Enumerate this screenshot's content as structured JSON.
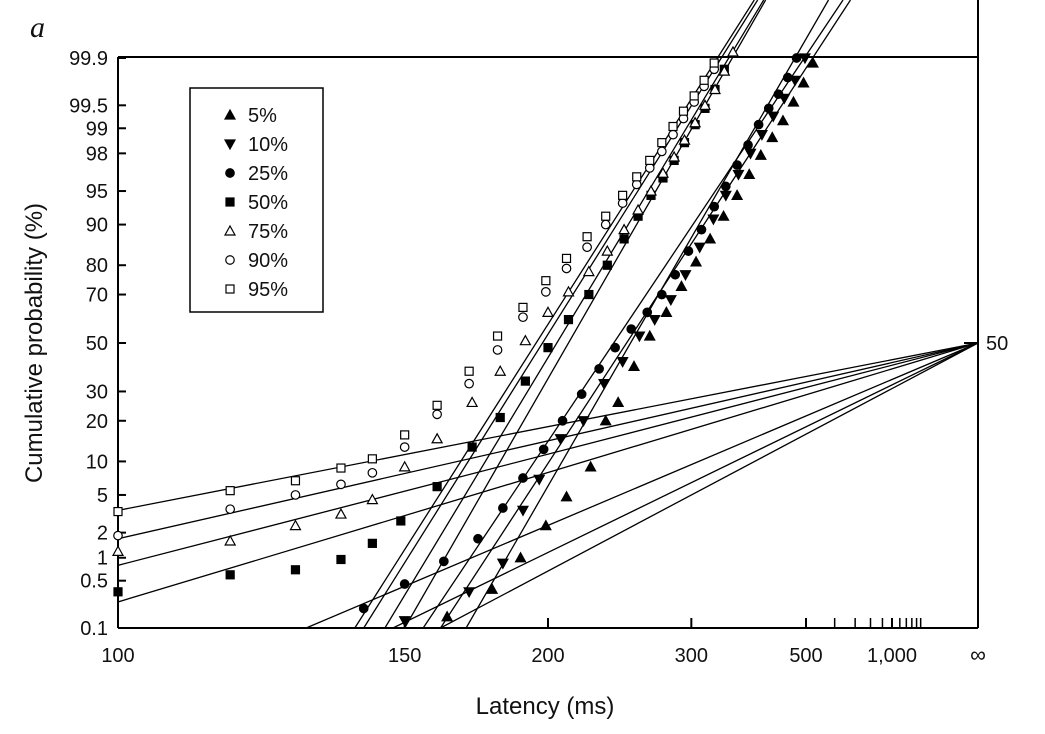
{
  "chart_data": {
    "type": "scatter",
    "panel_label": "a",
    "xlabel": "Latency (ms)",
    "ylabel": "Cumulative probability (%)",
    "x_scale": "reciprocal",
    "y_scale": "probit",
    "xlim": [
      100,
      "∞"
    ],
    "ylim": [
      0.1,
      99.9
    ],
    "grid": false,
    "legend_position": "top-left",
    "x_ticks": [
      {
        "value": 100,
        "label": "100"
      },
      {
        "value": 150,
        "label": "150"
      },
      {
        "value": 200,
        "label": "200"
      },
      {
        "value": 300,
        "label": "300"
      },
      {
        "value": 500,
        "label": "500"
      },
      {
        "value": 1000,
        "label": "1,000"
      },
      {
        "value": "inf",
        "label": "∞"
      }
    ],
    "x_minor_ticks": [
      600,
      700,
      800,
      900,
      1100,
      1200,
      1300,
      1400,
      1500
    ],
    "y_ticks": [
      {
        "value": 0.1,
        "label": "0.1"
      },
      {
        "value": 0.5,
        "label": "0.5"
      },
      {
        "value": 1,
        "label": "1"
      },
      {
        "value": 2,
        "label": "2"
      },
      {
        "value": 5,
        "label": "5"
      },
      {
        "value": 10,
        "label": "10"
      },
      {
        "value": 20,
        "label": "20"
      },
      {
        "value": 30,
        "label": "30"
      },
      {
        "value": 50,
        "label": "50"
      },
      {
        "value": 70,
        "label": "70"
      },
      {
        "value": 80,
        "label": "80"
      },
      {
        "value": 90,
        "label": "90"
      },
      {
        "value": 95,
        "label": "95"
      },
      {
        "value": 98,
        "label": "98"
      },
      {
        "value": 99,
        "label": "99"
      },
      {
        "value": 99.5,
        "label": "99.5"
      },
      {
        "value": 99.9,
        "label": "99.9"
      }
    ],
    "right_label": "50",
    "series": [
      {
        "name": "5%",
        "marker": "triangle-up-filled",
        "points": [
          [
            162,
            0.15
          ],
          [
            177,
            0.38
          ],
          [
            188,
            1.0
          ],
          [
            199,
            2.4
          ],
          [
            209,
            4.8
          ],
          [
            222,
            9
          ],
          [
            231,
            20
          ],
          [
            239,
            26
          ],
          [
            250,
            40
          ],
          [
            262,
            53
          ],
          [
            276,
            63
          ],
          [
            290,
            73
          ],
          [
            305,
            81
          ],
          [
            321,
            87
          ],
          [
            338,
            91.5
          ],
          [
            357,
            94.5
          ],
          [
            376,
            96.6
          ],
          [
            396,
            97.9
          ],
          [
            418,
            98.7
          ],
          [
            441,
            99.2
          ],
          [
            466,
            99.55
          ],
          [
            493,
            99.76
          ],
          [
            521,
            99.88
          ]
        ]
      },
      {
        "name": "10%",
        "marker": "triangle-down-filled",
        "points": [
          [
            150,
            0.13
          ],
          [
            169,
            0.35
          ],
          [
            181,
            0.85
          ],
          [
            189,
            3.5
          ],
          [
            196,
            7
          ],
          [
            206,
            15
          ],
          [
            218,
            20
          ],
          [
            230,
            33
          ],
          [
            242,
            42
          ],
          [
            254,
            53
          ],
          [
            266,
            60
          ],
          [
            280,
            68
          ],
          [
            294,
            77
          ],
          [
            309,
            85
          ],
          [
            325,
            91
          ],
          [
            341,
            94.5
          ],
          [
            359,
            96.6
          ],
          [
            378,
            98
          ],
          [
            398,
            98.8
          ],
          [
            420,
            99.3
          ],
          [
            444,
            99.6
          ],
          [
            470,
            99.78
          ],
          [
            497,
            99.9
          ]
        ]
      },
      {
        "name": "25%",
        "marker": "circle-filled",
        "points": [
          [
            140,
            0.2
          ],
          [
            150,
            0.45
          ],
          [
            161,
            0.9
          ],
          [
            172,
            1.7
          ],
          [
            181,
            3.7
          ],
          [
            189,
            7.2
          ],
          [
            198,
            12.5
          ],
          [
            207,
            20
          ],
          [
            217,
            29
          ],
          [
            227,
            39
          ],
          [
            237,
            48
          ],
          [
            248,
            56
          ],
          [
            260,
            63
          ],
          [
            272,
            70
          ],
          [
            284,
            77
          ],
          [
            297,
            84
          ],
          [
            311,
            89
          ],
          [
            326,
            93
          ],
          [
            341,
            95.5
          ],
          [
            357,
            97.3
          ],
          [
            374,
            98.4
          ],
          [
            392,
            99.1
          ],
          [
            411,
            99.45
          ],
          [
            431,
            99.65
          ],
          [
            452,
            99.8
          ],
          [
            474,
            99.9
          ]
        ]
      },
      {
        "name": "50%",
        "marker": "square-filled",
        "points": [
          [
            100,
            0.35
          ],
          [
            115,
            0.6
          ],
          [
            126,
            0.7
          ],
          [
            135,
            0.95
          ],
          [
            142,
            1.5
          ],
          [
            149,
            2.7
          ],
          [
            159,
            6
          ],
          [
            170,
            13
          ],
          [
            180,
            21
          ],
          [
            190,
            34
          ],
          [
            200,
            48
          ],
          [
            210,
            60
          ],
          [
            221,
            70
          ],
          [
            232,
            80
          ],
          [
            243,
            87
          ],
          [
            253,
            91.5
          ],
          [
            263,
            94.5
          ],
          [
            273,
            96.3
          ],
          [
            283,
            97.6
          ],
          [
            293,
            98.5
          ],
          [
            304,
            99.1
          ],
          [
            315,
            99.45
          ],
          [
            327,
            99.7
          ],
          [
            339,
            99.85
          ]
        ]
      },
      {
        "name": "75%",
        "marker": "triangle-up-open",
        "points": [
          [
            100,
            1.2
          ],
          [
            115,
            1.6
          ],
          [
            126,
            2.4
          ],
          [
            135,
            3.2
          ],
          [
            142,
            4.5
          ],
          [
            150,
            9
          ],
          [
            159,
            15
          ],
          [
            170,
            26
          ],
          [
            180,
            38
          ],
          [
            190,
            51
          ],
          [
            200,
            63
          ],
          [
            210,
            71
          ],
          [
            221,
            78
          ],
          [
            232,
            84
          ],
          [
            243,
            89
          ],
          [
            253,
            92.5
          ],
          [
            263,
            95
          ],
          [
            273,
            96.7
          ],
          [
            283,
            97.8
          ],
          [
            293,
            98.6
          ],
          [
            304,
            99.15
          ],
          [
            315,
            99.5
          ],
          [
            327,
            99.7
          ],
          [
            339,
            99.84
          ],
          [
            351,
            99.92
          ]
        ]
      },
      {
        "name": "90%",
        "marker": "circle-open",
        "points": [
          [
            100,
            1.85
          ],
          [
            115,
            3.6
          ],
          [
            126,
            5
          ],
          [
            135,
            6.3
          ],
          [
            142,
            8
          ],
          [
            150,
            13
          ],
          [
            159,
            22
          ],
          [
            169,
            33
          ],
          [
            179,
            47
          ],
          [
            189,
            61
          ],
          [
            199,
            71
          ],
          [
            209,
            79
          ],
          [
            220,
            85
          ],
          [
            231,
            90
          ],
          [
            242,
            93.5
          ],
          [
            252,
            95.7
          ],
          [
            262,
            97.1
          ],
          [
            272,
            98.1
          ],
          [
            282,
            98.8
          ],
          [
            292,
            99.25
          ],
          [
            303,
            99.55
          ],
          [
            314,
            99.73
          ],
          [
            326,
            99.85
          ]
        ]
      },
      {
        "name": "95%",
        "marker": "square-open",
        "points": [
          [
            100,
            3.4
          ],
          [
            115,
            5.5
          ],
          [
            126,
            6.8
          ],
          [
            135,
            8.8
          ],
          [
            142,
            10.5
          ],
          [
            150,
            16
          ],
          [
            159,
            25
          ],
          [
            169,
            38
          ],
          [
            179,
            53
          ],
          [
            189,
            65
          ],
          [
            199,
            75
          ],
          [
            209,
            82
          ],
          [
            220,
            87.5
          ],
          [
            231,
            91.5
          ],
          [
            242,
            94.5
          ],
          [
            252,
            96.4
          ],
          [
            262,
            97.6
          ],
          [
            272,
            98.5
          ],
          [
            282,
            99.05
          ],
          [
            292,
            99.4
          ],
          [
            303,
            99.63
          ],
          [
            314,
            99.78
          ],
          [
            326,
            99.88
          ]
        ]
      }
    ],
    "fitted_lines": [
      {
        "from": [
          160,
          0.1
        ],
        "to": [
          520,
          99.9
        ]
      },
      {
        "from": [
          155,
          0.1
        ],
        "to": [
          495,
          99.9
        ]
      },
      {
        "from": [
          168,
          0.1
        ],
        "to": [
          470,
          99.9
        ]
      },
      {
        "from": [
          150,
          0.1
        ],
        "to": [
          350,
          99.9
        ]
      },
      {
        "from": [
          145,
          0.1
        ],
        "to": [
          345,
          99.9
        ]
      },
      {
        "from": [
          140,
          0.1
        ],
        "to": [
          335,
          99.9
        ]
      },
      {
        "from": [
          138,
          0.1
        ],
        "to": [
          330,
          99.9
        ]
      }
    ],
    "early_lines": [
      {
        "from": [
          128,
          0.1
        ],
        "to": [
          "inf",
          50
        ]
      },
      {
        "from": [
          147,
          0.1
        ],
        "to": [
          "inf",
          50
        ]
      },
      {
        "from": [
          160,
          0.1
        ],
        "to": [
          "inf",
          50
        ]
      },
      {
        "from": [
          100,
          0.25
        ],
        "to": [
          "inf",
          50
        ]
      },
      {
        "from": [
          100,
          0.8
        ],
        "to": [
          "inf",
          50
        ]
      },
      {
        "from": [
          100,
          1.7
        ],
        "to": [
          "inf",
          50
        ]
      },
      {
        "from": [
          100,
          3.5
        ],
        "to": [
          "inf",
          50
        ]
      }
    ]
  }
}
